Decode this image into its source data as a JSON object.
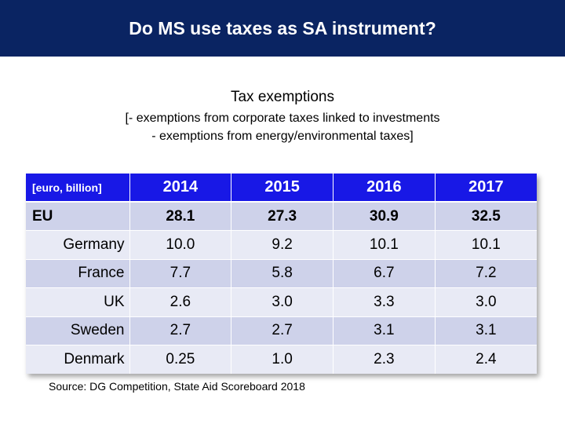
{
  "header": {
    "title": "Do MS use taxes as SA instrument?"
  },
  "subtitle": {
    "title": "Tax exemptions",
    "line1": "[- exemptions from corporate taxes linked to investments",
    "line2": "- exemptions from energy/environmental taxes]"
  },
  "table": {
    "unit_label": "[euro, billion]",
    "years": [
      "2014",
      "2015",
      "2016",
      "2017"
    ],
    "rows": [
      {
        "country": "EU",
        "values": [
          "28.1",
          "27.3",
          "30.9",
          "32.5"
        ]
      },
      {
        "country": "Germany",
        "values": [
          "10.0",
          "9.2",
          "10.1",
          "10.1"
        ]
      },
      {
        "country": "France",
        "values": [
          "7.7",
          "5.8",
          "6.7",
          "7.2"
        ]
      },
      {
        "country": "UK",
        "values": [
          "2.6",
          "3.0",
          "3.3",
          "3.0"
        ]
      },
      {
        "country": "Sweden",
        "values": [
          "2.7",
          "2.7",
          "3.1",
          "3.1"
        ]
      },
      {
        "country": "Denmark",
        "values": [
          "0.25",
          "1.0",
          "2.3",
          "2.4"
        ]
      }
    ]
  },
  "source": "Source: DG Competition, State Aid Scoreboard 2018",
  "colors": {
    "header_bg": "#0a2462",
    "table_header_bg": "#1818e6",
    "row_dark": "#ced2ea",
    "row_light": "#e8eaf5"
  }
}
